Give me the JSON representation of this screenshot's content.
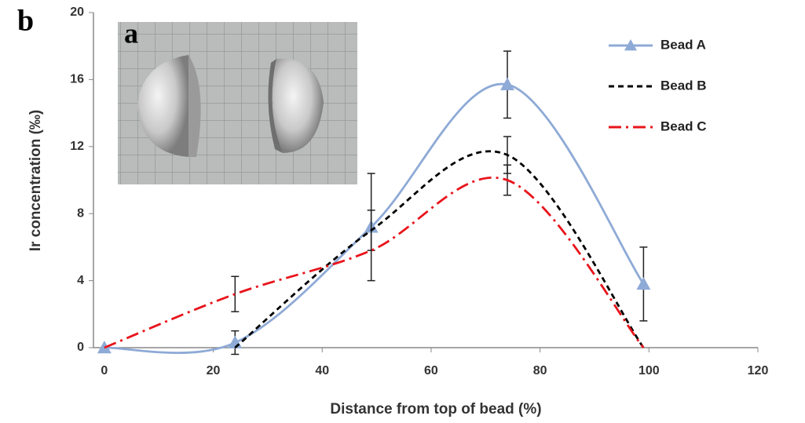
{
  "chart_data": {
    "type": "line",
    "panel_label": "b",
    "inset_label": "a",
    "xlabel": "Distance from top of bead (%)",
    "ylabel": "Ir concentration (‰)",
    "xlim": [
      -2,
      120
    ],
    "xticks": [
      0,
      20,
      40,
      60,
      80,
      100,
      120
    ],
    "ylim": [
      0,
      20
    ],
    "yticks": [
      0,
      4,
      8,
      12,
      16,
      20
    ],
    "legend": "top-right",
    "series": [
      {
        "name": "Bead A",
        "color": "#8eaad6",
        "marker": "triangle",
        "dash": "solid",
        "x": [
          0,
          24,
          49,
          74,
          99
        ],
        "values": [
          0,
          0.3,
          7.2,
          15.7,
          3.8
        ],
        "errors": [
          null,
          0.7,
          3.2,
          2.0,
          2.2
        ]
      },
      {
        "name": "Bead B",
        "color": "#000000",
        "marker": "none",
        "dash": "dash",
        "x": [
          24,
          49,
          74,
          99
        ],
        "values": [
          0,
          7.0,
          11.5,
          0
        ],
        "errors": [
          null,
          1.2,
          1.1,
          null
        ]
      },
      {
        "name": "Bead C",
        "color": "#e8141b",
        "marker": "none",
        "dash": "dashdot",
        "x": [
          0,
          24,
          49,
          74,
          99
        ],
        "values": [
          0,
          3.2,
          5.8,
          10.0,
          0
        ],
        "errors": [
          null,
          1.05,
          null,
          0.9,
          null
        ]
      }
    ]
  }
}
